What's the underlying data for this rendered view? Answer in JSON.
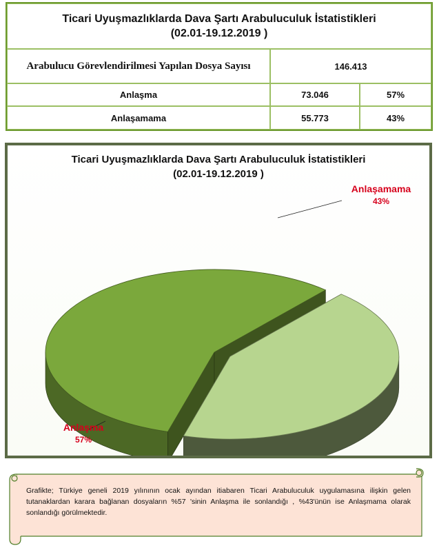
{
  "table": {
    "title_line1": "Ticari Uyuşmazlıklarda Dava Şartı Arabuluculuk İstatistikleri",
    "title_line2": "(02.01-19.12.2019 )",
    "rows": [
      {
        "label": "Arabulucu Görevlendirilmesi Yapılan Dosya Sayısı",
        "value": "146.413"
      },
      {
        "label": "Anlaşma",
        "value": "73.046",
        "percent": "57%"
      },
      {
        "label": "Anlaşamama",
        "value": "55.773",
        "percent": "43%"
      }
    ]
  },
  "chart_data": {
    "type": "pie",
    "title": "Ticari Uyuşmazlıklarda Dava Şartı Arabuluculuk İstatistikleri",
    "subtitle": "(02.01-19.12.2019 )",
    "labels": [
      "Anlaşma",
      "Anlaşamama"
    ],
    "values": [
      57,
      43
    ],
    "value_labels": [
      "57%",
      "43%"
    ],
    "colors": [
      "#7ba83c",
      "#b7d58f"
    ],
    "label_color": "#d6001c",
    "exploded": "Anlaşamama",
    "style": "3d"
  },
  "note": {
    "text": "Grafikte; Türkiye geneli 2019 yılınının ocak ayından itiabaren Ticari Arabuluculuk uygulamasına ilişkin gelen tutanaklardan karara bağlanan dosyaların %57 'sinin Anlaşma ile sonlandığı , %43'ünün ise Anlaşmama olarak sonlandığı görülmektedir.",
    "fill_color": "#fde3d6",
    "border_color": "#4f7f28"
  }
}
